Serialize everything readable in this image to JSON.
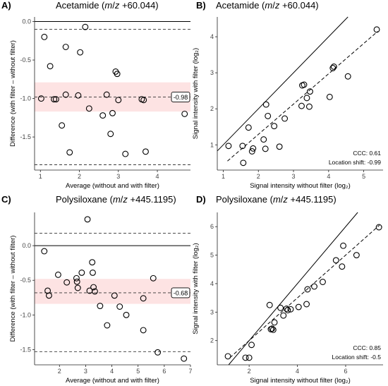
{
  "chart_data": [
    {
      "type": "scatter",
      "panel_label": "A)",
      "title_text": "Acetamide (",
      "title_mz_m": "m",
      "title_mz_sep": "/",
      "title_mz_z": "z",
      "title_mz_value": " +60.044)",
      "xlabel": "Average (without and with filter)",
      "ylabel": "Difference (with filter – without filter)",
      "xlim": [
        0.85,
        4.85
      ],
      "ylim": [
        -1.93,
        0.06
      ],
      "xticks": [
        1,
        2,
        3,
        4
      ],
      "yticks": [
        0.0,
        -0.5,
        -1.0,
        -1.5
      ],
      "ytick_labels": [
        "0.0",
        "-0.5",
        "-1.0",
        "-1.5"
      ],
      "band": [
        -1.17,
        -0.79
      ],
      "band_color": "#fde3e3",
      "mean_line": -0.98,
      "mean_label": "-0.98",
      "upper_loa": -0.1,
      "lower_loa": -1.86,
      "points": [
        {
          "x": 1.1,
          "y": -0.2
        },
        {
          "x": 1.02,
          "y": -1.0
        },
        {
          "x": 1.25,
          "y": -0.58
        },
        {
          "x": 1.35,
          "y": -1.01
        },
        {
          "x": 1.4,
          "y": -1.01
        },
        {
          "x": 1.55,
          "y": -1.35
        },
        {
          "x": 1.65,
          "y": -0.33
        },
        {
          "x": 1.65,
          "y": -0.95
        },
        {
          "x": 1.75,
          "y": -1.7
        },
        {
          "x": 1.97,
          "y": -0.96
        },
        {
          "x": 2.02,
          "y": -0.4
        },
        {
          "x": 2.15,
          "y": -0.07
        },
        {
          "x": 2.25,
          "y": -1.13
        },
        {
          "x": 2.6,
          "y": -1.22
        },
        {
          "x": 2.7,
          "y": -0.95
        },
        {
          "x": 2.8,
          "y": -1.46
        },
        {
          "x": 2.85,
          "y": -1.19
        },
        {
          "x": 2.93,
          "y": -0.65
        },
        {
          "x": 2.97,
          "y": -0.68
        },
        {
          "x": 3.0,
          "y": -1.02
        },
        {
          "x": 3.18,
          "y": -1.72
        },
        {
          "x": 3.6,
          "y": -1.01
        },
        {
          "x": 3.65,
          "y": -1.02
        },
        {
          "x": 3.7,
          "y": -1.69
        },
        {
          "x": 4.7,
          "y": -1.2
        }
      ]
    },
    {
      "type": "scatter",
      "panel_label": "B)",
      "title_text": "Acetamide (",
      "title_mz_m": "m",
      "title_mz_sep": "/",
      "title_mz_z": "z",
      "title_mz_value": " +60.044)",
      "xlabel": "Signal intensity without filter (log₂)",
      "ylabel": "Signal intensity with filter (log₂)",
      "xlim": [
        0.83,
        5.55
      ],
      "ylim": [
        0.3,
        4.55
      ],
      "xticks": [
        1,
        2,
        3,
        4,
        5
      ],
      "yticks": [
        1,
        2,
        3,
        4
      ],
      "identity_line": true,
      "fit_line": {
        "x0": 1.12,
        "y0": 0.55,
        "x1": 5.4,
        "y1": 4.15
      },
      "ccc_label": "CCC: 0.61",
      "shift_label": "Location shift: -0.99",
      "points": [
        {
          "x": 1.15,
          "y": 0.97
        },
        {
          "x": 1.55,
          "y": 0.97
        },
        {
          "x": 1.57,
          "y": 0.5
        },
        {
          "x": 1.72,
          "y": 1.48
        },
        {
          "x": 1.82,
          "y": 0.82
        },
        {
          "x": 1.85,
          "y": 0.9
        },
        {
          "x": 2.15,
          "y": 1.15
        },
        {
          "x": 2.2,
          "y": 0.89
        },
        {
          "x": 2.22,
          "y": 2.12
        },
        {
          "x": 2.27,
          "y": 1.8
        },
        {
          "x": 2.45,
          "y": 1.52
        },
        {
          "x": 2.6,
          "y": 0.95
        },
        {
          "x": 2.75,
          "y": 1.73
        },
        {
          "x": 3.23,
          "y": 2.08
        },
        {
          "x": 3.25,
          "y": 2.65
        },
        {
          "x": 3.3,
          "y": 2.67
        },
        {
          "x": 3.38,
          "y": 2.3
        },
        {
          "x": 3.45,
          "y": 2.06
        },
        {
          "x": 3.47,
          "y": 2.48
        },
        {
          "x": 4.03,
          "y": 2.33
        },
        {
          "x": 4.12,
          "y": 3.13
        },
        {
          "x": 4.15,
          "y": 3.17
        },
        {
          "x": 4.55,
          "y": 2.9
        },
        {
          "x": 5.37,
          "y": 4.2
        }
      ]
    },
    {
      "type": "scatter",
      "panel_label": "C)",
      "title_text": "Polysiloxane (",
      "title_mz_m": "m",
      "title_mz_sep": "/",
      "title_mz_z": "z",
      "title_mz_value": " +445.1195)",
      "xlabel": "Average (without and with filter)",
      "ylabel": "Difference (with filter – without filter)",
      "xlim": [
        1.05,
        7.0
      ],
      "ylim": [
        -1.72,
        0.48
      ],
      "xticks": [
        2,
        3,
        4,
        5,
        6,
        7
      ],
      "yticks": [
        0.0,
        -0.5,
        -1.0,
        -1.5
      ],
      "ytick_labels": [
        "0.0",
        "-0.5",
        "-1.0",
        "-1.5"
      ],
      "band": [
        -0.84,
        -0.48
      ],
      "band_color": "#fde3e3",
      "mean_line": -0.68,
      "mean_label": "-0.68",
      "upper_loa": 0.18,
      "lower_loa": -1.53,
      "points": [
        {
          "x": 1.42,
          "y": -0.08
        },
        {
          "x": 1.55,
          "y": -0.65
        },
        {
          "x": 1.6,
          "y": -0.72
        },
        {
          "x": 1.95,
          "y": -0.42
        },
        {
          "x": 2.28,
          "y": -0.53
        },
        {
          "x": 2.65,
          "y": -0.47
        },
        {
          "x": 2.67,
          "y": -0.52
        },
        {
          "x": 2.7,
          "y": -0.61
        },
        {
          "x": 2.85,
          "y": -0.39
        },
        {
          "x": 3.07,
          "y": 0.38
        },
        {
          "x": 3.15,
          "y": -0.65
        },
        {
          "x": 3.25,
          "y": -0.24
        },
        {
          "x": 3.27,
          "y": -0.39
        },
        {
          "x": 3.3,
          "y": -0.6
        },
        {
          "x": 3.35,
          "y": -0.66
        },
        {
          "x": 3.55,
          "y": -0.87
        },
        {
          "x": 3.82,
          "y": -1.15
        },
        {
          "x": 4.1,
          "y": -0.72
        },
        {
          "x": 4.3,
          "y": -0.88
        },
        {
          "x": 4.55,
          "y": -1.0
        },
        {
          "x": 5.2,
          "y": -0.76
        },
        {
          "x": 5.2,
          "y": -1.22
        },
        {
          "x": 5.58,
          "y": -0.47
        },
        {
          "x": 5.75,
          "y": -1.54
        },
        {
          "x": 6.75,
          "y": -1.63
        }
      ]
    },
    {
      "type": "scatter",
      "panel_label": "D)",
      "title_text": "Polysiloxane (",
      "title_mz_m": "m",
      "title_mz_sep": "/",
      "title_mz_z": "z",
      "title_mz_value": " +445.1195)",
      "xlabel": "Signal intensity without filter (log₂)",
      "ylabel": "Signal intensity with filter (log₂)",
      "xlim": [
        0.68,
        7.55
      ],
      "ylim": [
        1.15,
        6.5
      ],
      "xticks": [
        2,
        4,
        6
      ],
      "yticks": [
        2,
        3,
        4,
        5,
        6
      ],
      "identity_line": true,
      "fit_line": {
        "x0": 1.2,
        "y0": 1.4,
        "x1": 7.4,
        "y1": 6.05
      },
      "ccc_label": "CCC: 0.85",
      "shift_label": "Location shift: -0.5",
      "points": [
        {
          "x": 1.12,
          "y": 1.45
        },
        {
          "x": 1.85,
          "y": 1.4
        },
        {
          "x": 2.0,
          "y": 1.4
        },
        {
          "x": 2.1,
          "y": 1.85
        },
        {
          "x": 2.85,
          "y": 3.25
        },
        {
          "x": 2.9,
          "y": 2.4
        },
        {
          "x": 2.95,
          "y": 2.42
        },
        {
          "x": 3.0,
          "y": 2.38
        },
        {
          "x": 3.05,
          "y": 2.64
        },
        {
          "x": 3.3,
          "y": 3.15
        },
        {
          "x": 3.42,
          "y": 2.88
        },
        {
          "x": 3.55,
          "y": 3.12
        },
        {
          "x": 3.6,
          "y": 3.07
        },
        {
          "x": 3.72,
          "y": 3.1
        },
        {
          "x": 4.05,
          "y": 3.18
        },
        {
          "x": 4.38,
          "y": 3.28
        },
        {
          "x": 4.42,
          "y": 3.8
        },
        {
          "x": 4.7,
          "y": 3.9
        },
        {
          "x": 5.05,
          "y": 4.06
        },
        {
          "x": 5.6,
          "y": 4.82
        },
        {
          "x": 5.85,
          "y": 4.6
        },
        {
          "x": 5.9,
          "y": 5.33
        },
        {
          "x": 6.45,
          "y": 5.0
        },
        {
          "x": 7.38,
          "y": 5.98
        }
      ]
    }
  ]
}
